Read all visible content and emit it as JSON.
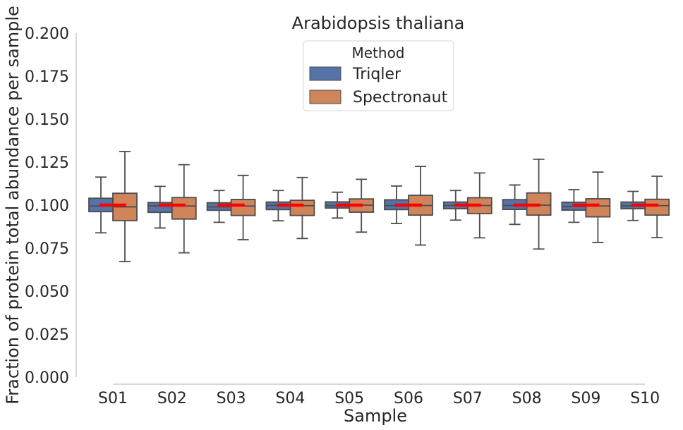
{
  "chart_data": {
    "type": "box",
    "title": "Arabidopsis thaliana",
    "xlabel": "Sample",
    "ylabel": "Fraction of protein total abundance per sample",
    "ylim": [
      0,
      0.2
    ],
    "yticks": [
      "0.000",
      "0.025",
      "0.050",
      "0.075",
      "0.100",
      "0.125",
      "0.150",
      "0.175",
      "0.200"
    ],
    "categories": [
      "S01",
      "S02",
      "S03",
      "S04",
      "S05",
      "S06",
      "S07",
      "S08",
      "S09",
      "S10"
    ],
    "reference_line": {
      "value": 0.1,
      "color": "#ff0000"
    },
    "grid": false,
    "legend": {
      "title": "Method",
      "position": "top-center"
    },
    "series": [
      {
        "name": "Triqler",
        "color": "#5573a6",
        "boxes": [
          {
            "whisker_low": 0.0839,
            "q1": 0.0962,
            "median": 0.0995,
            "q3": 0.104,
            "whisker_high": 0.1163
          },
          {
            "whisker_low": 0.0867,
            "q1": 0.0958,
            "median": 0.0996,
            "q3": 0.1015,
            "whisker_high": 0.1109
          },
          {
            "whisker_low": 0.09,
            "q1": 0.097,
            "median": 0.099,
            "q3": 0.1014,
            "whisker_high": 0.1085
          },
          {
            "whisker_low": 0.0909,
            "q1": 0.0974,
            "median": 0.0998,
            "q3": 0.1018,
            "whisker_high": 0.1085
          },
          {
            "whisker_low": 0.0925,
            "q1": 0.0983,
            "median": 0.0997,
            "q3": 0.1019,
            "whisker_high": 0.1075
          },
          {
            "whisker_low": 0.0893,
            "q1": 0.0974,
            "median": 0.0997,
            "q3": 0.1031,
            "whisker_high": 0.1111
          },
          {
            "whisker_low": 0.0913,
            "q1": 0.0979,
            "median": 0.0998,
            "q3": 0.1018,
            "whisker_high": 0.1085
          },
          {
            "whisker_low": 0.0888,
            "q1": 0.0975,
            "median": 0.0998,
            "q3": 0.1032,
            "whisker_high": 0.1117
          },
          {
            "whisker_low": 0.09,
            "q1": 0.0971,
            "median": 0.0992,
            "q3": 0.1017,
            "whisker_high": 0.109
          },
          {
            "whisker_low": 0.0911,
            "q1": 0.0979,
            "median": 0.0996,
            "q3": 0.1018,
            "whisker_high": 0.108
          }
        ]
      },
      {
        "name": "Spectronaut",
        "color": "#d0845a",
        "boxes": [
          {
            "whisker_low": 0.0672,
            "q1": 0.091,
            "median": 0.099,
            "q3": 0.1069,
            "whisker_high": 0.1312
          },
          {
            "whisker_low": 0.0723,
            "q1": 0.0919,
            "median": 0.0995,
            "q3": 0.1044,
            "whisker_high": 0.1235
          },
          {
            "whisker_low": 0.0799,
            "q1": 0.094,
            "median": 0.0995,
            "q3": 0.1033,
            "whisker_high": 0.1173
          },
          {
            "whisker_low": 0.0806,
            "q1": 0.094,
            "median": 0.0997,
            "q3": 0.1028,
            "whisker_high": 0.1161
          },
          {
            "whisker_low": 0.0843,
            "q1": 0.0959,
            "median": 0.1,
            "q3": 0.1036,
            "whisker_high": 0.115
          },
          {
            "whisker_low": 0.0768,
            "q1": 0.0942,
            "median": 0.0998,
            "q3": 0.1057,
            "whisker_high": 0.1225
          },
          {
            "whisker_low": 0.081,
            "q1": 0.0951,
            "median": 0.0998,
            "q3": 0.1043,
            "whisker_high": 0.1187
          },
          {
            "whisker_low": 0.0745,
            "q1": 0.0942,
            "median": 0.1,
            "q3": 0.1071,
            "whisker_high": 0.1267
          },
          {
            "whisker_low": 0.0783,
            "q1": 0.0932,
            "median": 0.0995,
            "q3": 0.1037,
            "whisker_high": 0.1192
          },
          {
            "whisker_low": 0.0811,
            "q1": 0.0942,
            "median": 0.0997,
            "q3": 0.1034,
            "whisker_high": 0.1168
          }
        ]
      }
    ]
  }
}
